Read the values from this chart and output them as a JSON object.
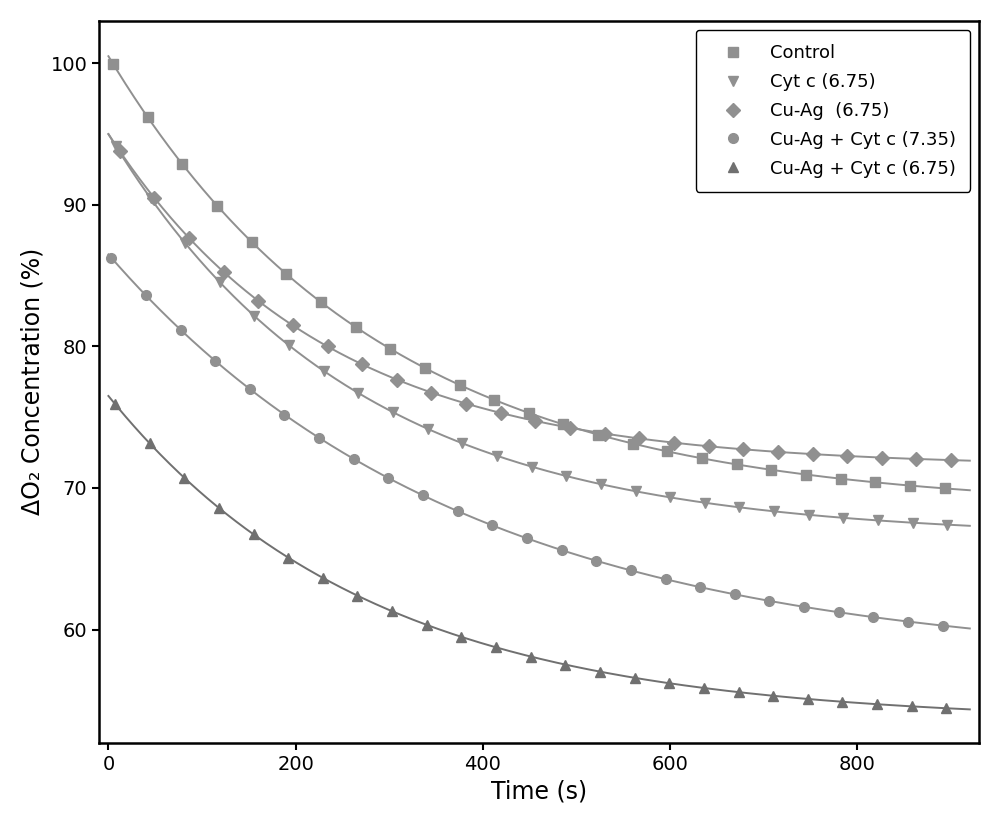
{
  "title": "",
  "xlabel": "Time (s)",
  "ylabel": "ΔO₂ Concentration (%)",
  "xlim": [
    -10,
    930
  ],
  "ylim": [
    52,
    103
  ],
  "yticks": [
    60,
    70,
    80,
    90,
    100
  ],
  "xticks": [
    0,
    200,
    400,
    600,
    800
  ],
  "series": [
    {
      "label": "Control",
      "color": "#909090",
      "marker": "s",
      "y0": 100.5,
      "tau": 290,
      "plateau": 68.5
    },
    {
      "label": "Cyt c (6.75)",
      "color": "#909090",
      "marker": "v",
      "y0": 95.0,
      "tau": 260,
      "plateau": 66.5
    },
    {
      "label": "Cu-Ag  (6.75)",
      "color": "#909090",
      "marker": "D",
      "y0": 95.0,
      "tau": 230,
      "plateau": 71.5
    },
    {
      "label": "Cu-Ag + Cyt c (7.35)",
      "color": "#909090",
      "marker": "o",
      "y0": 86.5,
      "tau": 380,
      "plateau": 57.5
    },
    {
      "label": "Cu-Ag + Cyt c (6.75)",
      "color": "#707070",
      "marker": "^",
      "y0": 76.5,
      "tau": 280,
      "plateau": 53.5
    }
  ],
  "background_color": "#ffffff",
  "legend_loc": "upper right",
  "markersize": 7,
  "linewidth": 1.4,
  "fontsize_labels": 17,
  "fontsize_ticks": 14,
  "fontsize_legend": 13
}
